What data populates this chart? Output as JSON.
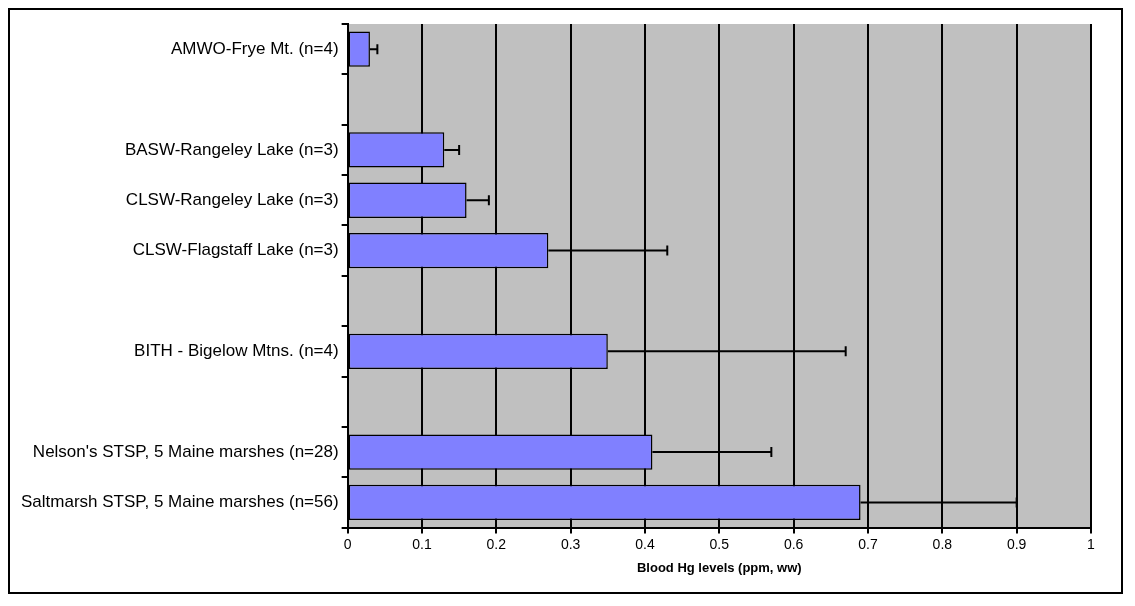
{
  "chart_data": {
    "type": "bar",
    "orientation": "horizontal",
    "xlabel": "Blood Hg levels (ppm, ww)",
    "categories": [
      "AMWO-Frye Mt. (n=4)",
      null,
      "BASW-Rangeley Lake (n=3)",
      "CLSW-Rangeley Lake (n=3)",
      "CLSW-Flagstaff Lake (n=3)",
      null,
      "BITH - Bigelow Mtns. (n=4)",
      null,
      "Nelson's STSP, 5 Maine marshes (n=28)",
      "Saltmarsh STSP, 5 Maine marshes (n=56)"
    ],
    "values": [
      0.03,
      null,
      0.13,
      0.16,
      0.27,
      null,
      0.35,
      null,
      0.41,
      0.69
    ],
    "errors": [
      [
        0.03,
        0.04
      ],
      null,
      [
        0.13,
        0.15
      ],
      [
        0.16,
        0.19
      ],
      [
        0.27,
        0.43
      ],
      null,
      [
        0.35,
        0.67
      ],
      null,
      [
        0.41,
        0.57
      ],
      [
        0.69,
        0.9
      ]
    ],
    "color": "#8080ff",
    "xlim": [
      0,
      1
    ],
    "xticks": [
      0,
      0.1,
      0.2,
      0.3,
      0.4,
      0.5,
      0.6,
      0.7,
      0.8,
      0.9,
      1
    ],
    "grid": "x",
    "legend": false
  }
}
